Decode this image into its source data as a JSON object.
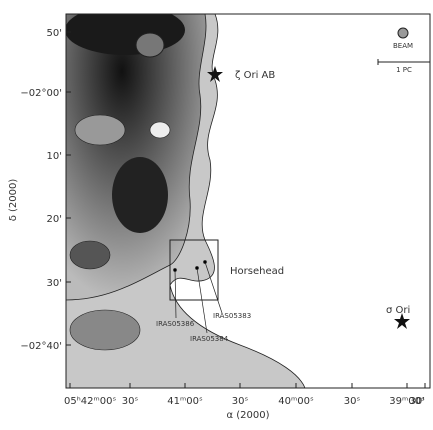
{
  "axes": {
    "x_label": "α (2000)",
    "y_label": "δ (2000)",
    "x_ticks": [
      "05ʰ42ᵐ00ˢ",
      "30ˢ",
      "41ᵐ00ˢ",
      "30ˢ",
      "40ᵐ00ˢ",
      "30ˢ",
      "39ᵐ00ˢ",
      "30'"
    ],
    "y_ticks": [
      "50'",
      "−02°00'",
      "10'",
      "20'",
      "30'",
      "−02°40'"
    ]
  },
  "annotations": {
    "zeta_ori": "ζ Ori AB",
    "horsehead": "Horsehead",
    "sigma_ori": "σ Ori",
    "iras1": "IRAS05386",
    "iras2": "IRAS05383",
    "iras3": "IRAS05384",
    "beam": "BEAM",
    "scale": "1 PC"
  }
}
